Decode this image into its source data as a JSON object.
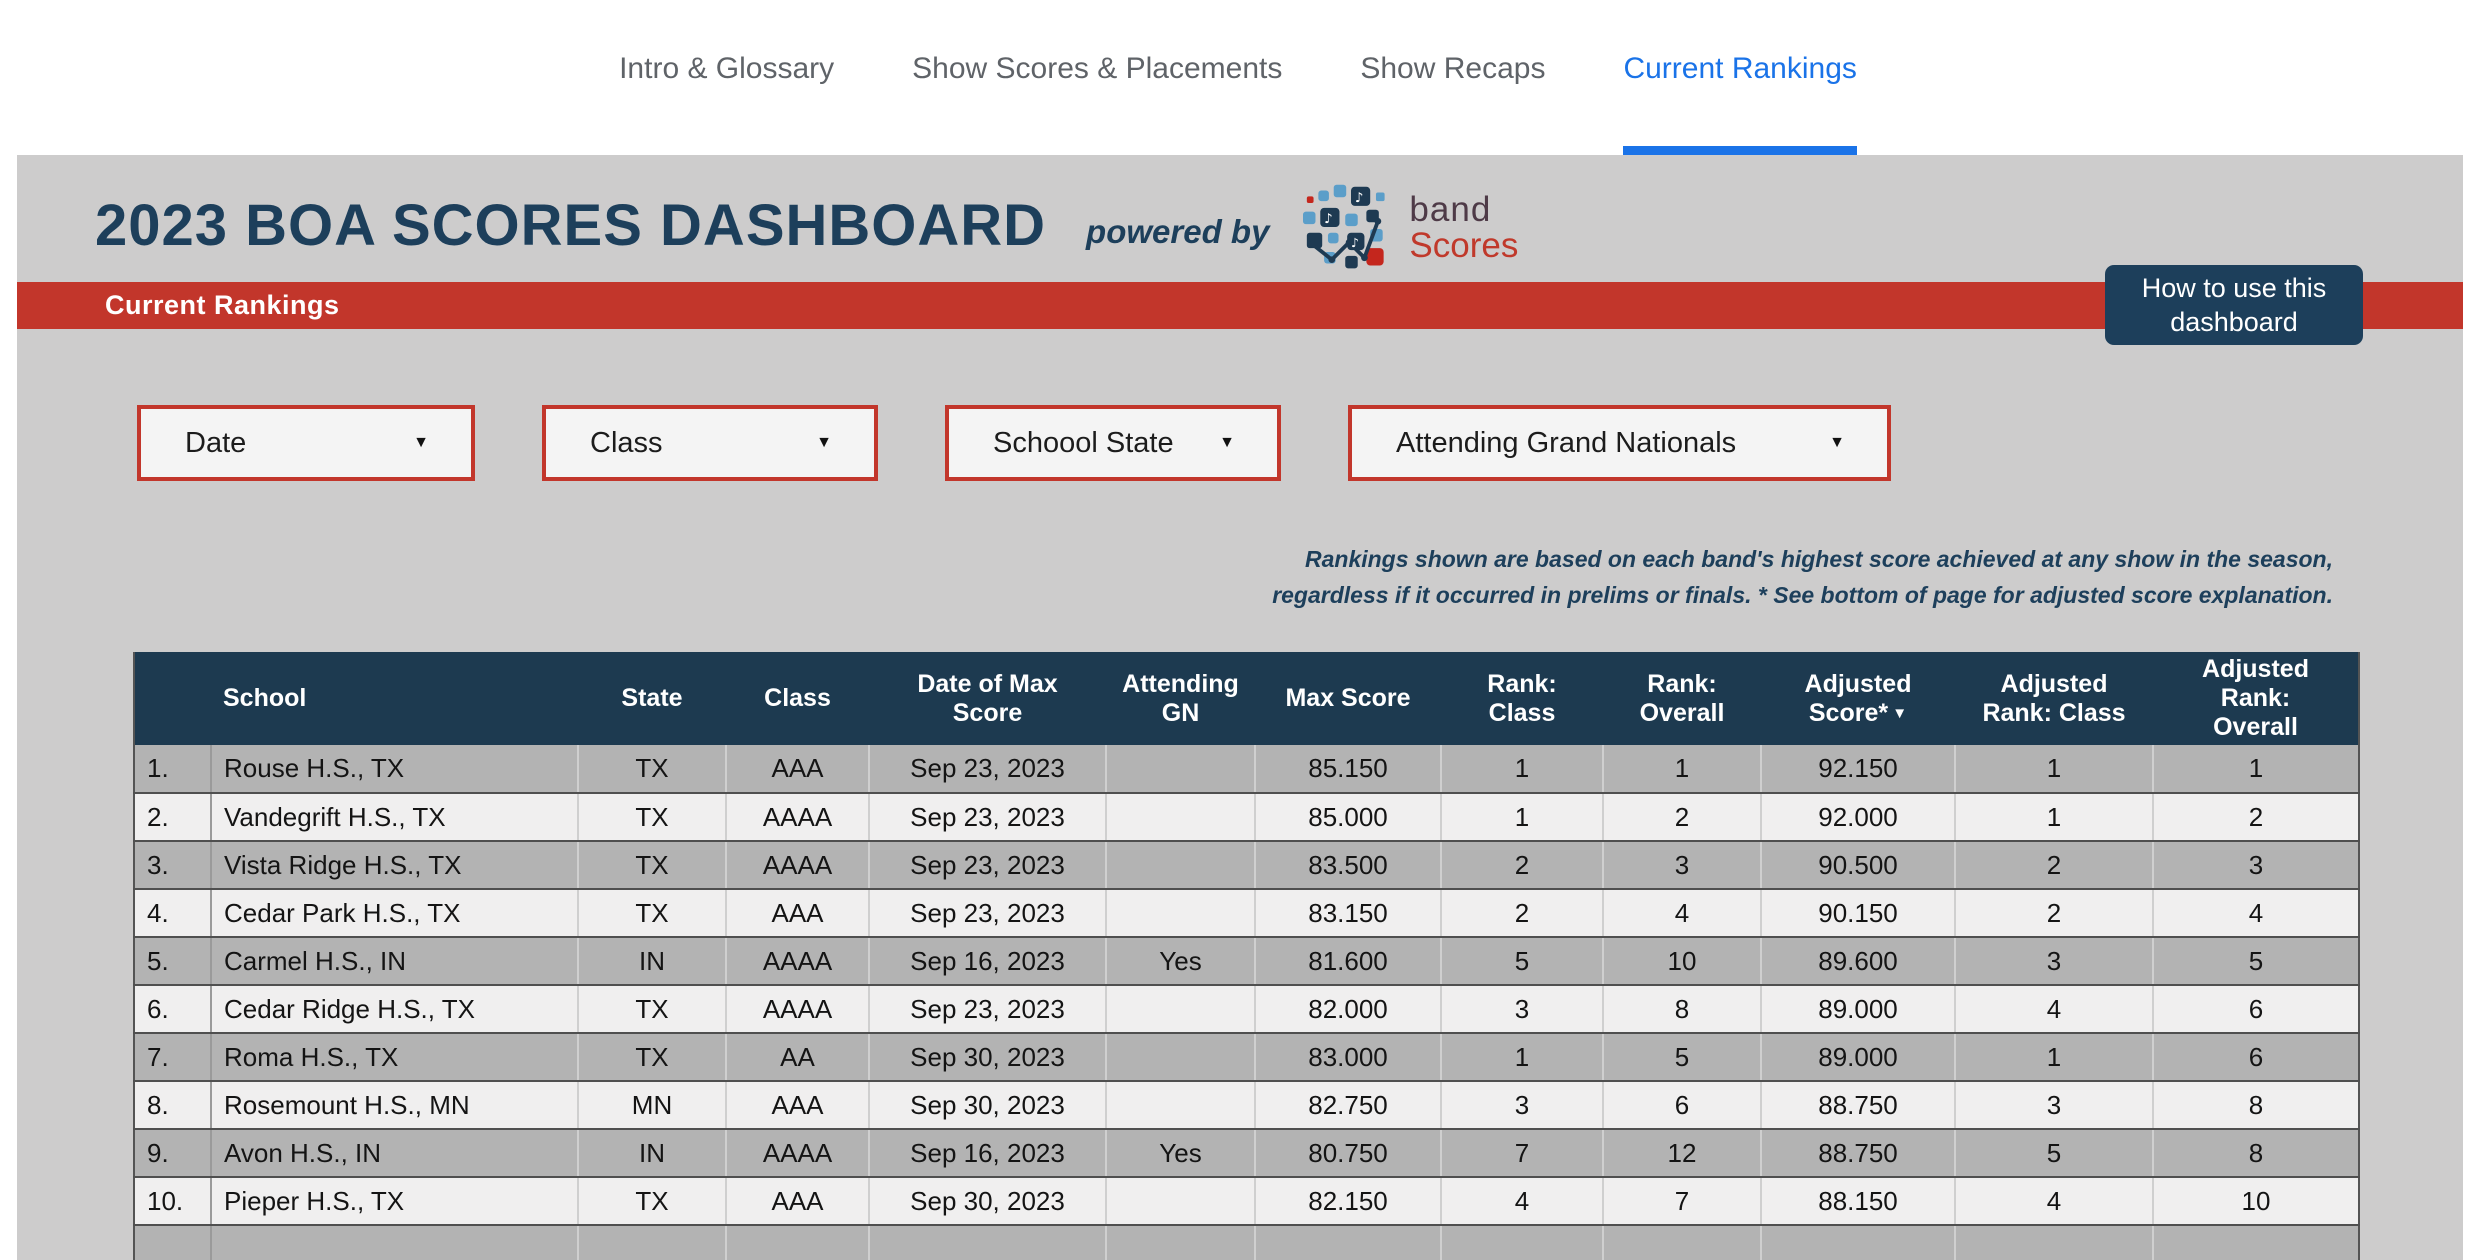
{
  "nav": {
    "tabs": [
      {
        "label": "Intro & Glossary",
        "active": false
      },
      {
        "label": "Show Scores & Placements",
        "active": false
      },
      {
        "label": "Show Recaps",
        "active": false
      },
      {
        "label": "Current Rankings",
        "active": true
      }
    ]
  },
  "header": {
    "title": "2023 BOA SCORES DASHBOARD",
    "powered_by": "powered by",
    "logo": {
      "top": "band",
      "bottom": "Scores"
    }
  },
  "banner": {
    "title": "Current Rankings",
    "help_button": "How to use this dashboard"
  },
  "filters": [
    {
      "label": "Date"
    },
    {
      "label": "Class"
    },
    {
      "label": "Schoool State"
    },
    {
      "label": "Attending Grand Nationals"
    }
  ],
  "icons": {
    "dropdown_caret": "▼"
  },
  "note": "Rankings shown are based on each band's highest score achieved at any show in the season,\nregardless if it occurred in prelims or finals. * See bottom of page for adjusted score explanation.",
  "table": {
    "columns": [
      {
        "label": ""
      },
      {
        "label": "School"
      },
      {
        "label": "State"
      },
      {
        "label": "Class"
      },
      {
        "label": "Date of Max\nScore"
      },
      {
        "label": "Attending\nGN"
      },
      {
        "label": "Max Score"
      },
      {
        "label": "Rank:\nClass"
      },
      {
        "label": "Rank:\nOverall"
      },
      {
        "label": "Adjusted\nScore*",
        "sort_indicator": "▼"
      },
      {
        "label": "Adjusted\nRank: Class"
      },
      {
        "label": "Adjusted\nRank:\nOverall"
      }
    ],
    "rows": [
      [
        "1.",
        "Rouse H.S., TX",
        "TX",
        "AAA",
        "Sep 23, 2023",
        "",
        "85.150",
        "1",
        "1",
        "92.150",
        "1",
        "1"
      ],
      [
        "2.",
        "Vandegrift H.S., TX",
        "TX",
        "AAAA",
        "Sep 23, 2023",
        "",
        "85.000",
        "1",
        "2",
        "92.000",
        "1",
        "2"
      ],
      [
        "3.",
        "Vista Ridge H.S., TX",
        "TX",
        "AAAA",
        "Sep 23, 2023",
        "",
        "83.500",
        "2",
        "3",
        "90.500",
        "2",
        "3"
      ],
      [
        "4.",
        "Cedar Park H.S., TX",
        "TX",
        "AAA",
        "Sep 23, 2023",
        "",
        "83.150",
        "2",
        "4",
        "90.150",
        "2",
        "4"
      ],
      [
        "5.",
        "Carmel H.S., IN",
        "IN",
        "AAAA",
        "Sep 16, 2023",
        "Yes",
        "81.600",
        "5",
        "10",
        "89.600",
        "3",
        "5"
      ],
      [
        "6.",
        "Cedar Ridge H.S., TX",
        "TX",
        "AAAA",
        "Sep 23, 2023",
        "",
        "82.000",
        "3",
        "8",
        "89.000",
        "4",
        "6"
      ],
      [
        "7.",
        "Roma H.S., TX",
        "TX",
        "AA",
        "Sep 30, 2023",
        "",
        "83.000",
        "1",
        "5",
        "89.000",
        "1",
        "6"
      ],
      [
        "8.",
        "Rosemount H.S., MN",
        "MN",
        "AAA",
        "Sep 30, 2023",
        "",
        "82.750",
        "3",
        "6",
        "88.750",
        "3",
        "8"
      ],
      [
        "9.",
        "Avon H.S., IN",
        "IN",
        "AAAA",
        "Sep 16, 2023",
        "Yes",
        "80.750",
        "7",
        "12",
        "88.750",
        "5",
        "8"
      ],
      [
        "10.",
        "Pieper H.S., TX",
        "TX",
        "AAA",
        "Sep 30, 2023",
        "",
        "82.150",
        "4",
        "7",
        "88.150",
        "4",
        "10"
      ]
    ]
  },
  "colors": {
    "accent_red": "#c2362b",
    "navy": "#1d3f5b",
    "table_header": "#1d3a50",
    "tab_active_blue": "#1a73e8",
    "row_dark": "#b3b3b3",
    "row_light": "#f0efef",
    "content_bg": "#cdcccc",
    "logo_blue": "#5b9ec9",
    "logo_red": "#c4261d"
  }
}
